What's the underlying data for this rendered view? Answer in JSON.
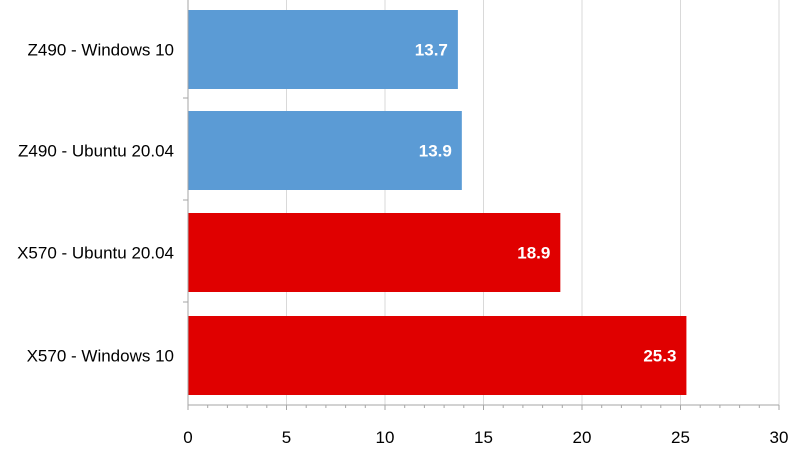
{
  "chart_data": {
    "type": "bar",
    "orientation": "horizontal",
    "categories": [
      "Z490 - Windows 10",
      "Z490 - Ubuntu 20.04",
      "X570 - Ubuntu 20.04",
      "X570 - Windows 10"
    ],
    "values": [
      13.7,
      13.9,
      18.9,
      25.3
    ],
    "bar_colors": [
      "#5b9bd5",
      "#5b9bd5",
      "#e00000",
      "#e00000"
    ],
    "data_labels": [
      "13.7",
      "13.9",
      "18.9",
      "25.3"
    ],
    "xlim": [
      0,
      30
    ],
    "x_ticks": [
      0,
      5,
      10,
      15,
      20,
      25,
      30
    ],
    "x_tick_labels": [
      "0",
      "5",
      "10",
      "15",
      "20",
      "25",
      "30"
    ],
    "grid": true,
    "title": "",
    "xlabel": "",
    "ylabel": ""
  }
}
